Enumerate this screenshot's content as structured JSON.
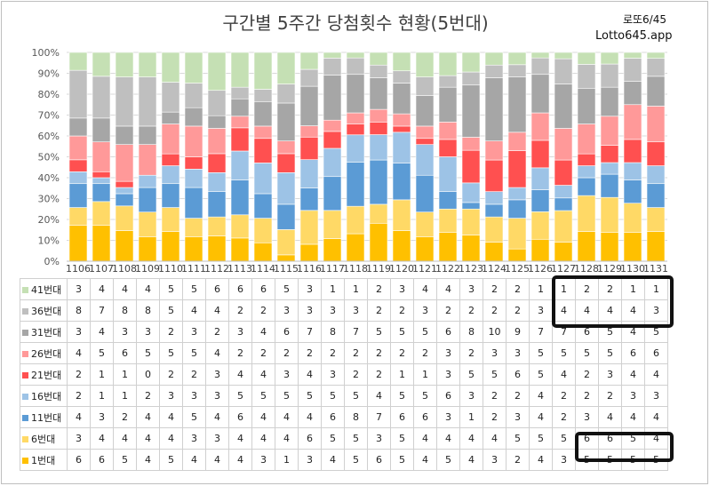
{
  "title": "구간별 5주간 당첨횟수 현황(5번대)",
  "brand": {
    "top": "로또6/45",
    "bottom": "Lotto645.app"
  },
  "chart_data": {
    "type": "bar",
    "stacked": "percent",
    "categories": [
      "1106",
      "1107",
      "1108",
      "1109",
      "1110",
      "1111",
      "1112",
      "1113",
      "1114",
      "1115",
      "1116",
      "1117",
      "1118",
      "1119",
      "1120",
      "1121",
      "1122",
      "1123",
      "1124",
      "1125",
      "1126",
      "1127",
      "1128",
      "1129",
      "1130",
      "1131"
    ],
    "y_ticks": [
      "0%",
      "10%",
      "20%",
      "30%",
      "40%",
      "50%",
      "60%",
      "70%",
      "80%",
      "90%",
      "100%"
    ],
    "ylim": [
      0,
      100
    ],
    "grid": true,
    "series": [
      {
        "name": "1번대",
        "color": "#ffc000",
        "values": [
          6,
          6,
          5,
          4,
          5,
          4,
          4,
          4,
          3,
          1,
          3,
          4,
          5,
          6,
          5,
          4,
          5,
          4,
          3,
          2,
          4,
          3,
          5,
          5,
          5,
          5
        ]
      },
      {
        "name": "6번대",
        "color": "#ffd966",
        "values": [
          3,
          4,
          4,
          4,
          4,
          3,
          3,
          4,
          4,
          4,
          6,
          5,
          5,
          3,
          5,
          4,
          4,
          4,
          4,
          5,
          5,
          5,
          6,
          6,
          5,
          4
        ]
      },
      {
        "name": "11번대",
        "color": "#5b9bd5",
        "values": [
          4,
          3,
          2,
          4,
          4,
          5,
          4,
          6,
          4,
          4,
          4,
          6,
          8,
          7,
          6,
          6,
          3,
          1,
          2,
          3,
          4,
          2,
          3,
          4,
          4,
          4
        ]
      },
      {
        "name": "16번대",
        "color": "#9dc3e6",
        "values": [
          2,
          1,
          1,
          2,
          3,
          3,
          3,
          5,
          5,
          5,
          5,
          5,
          5,
          4,
          5,
          5,
          6,
          3,
          2,
          2,
          4,
          2,
          2,
          2,
          3,
          3
        ]
      },
      {
        "name": "21번대",
        "color": "#ff5050",
        "values": [
          2,
          1,
          1,
          0,
          2,
          2,
          3,
          4,
          4,
          3,
          4,
          3,
          2,
          2,
          1,
          1,
          3,
          5,
          5,
          6,
          5,
          4,
          2,
          3,
          4,
          4
        ]
      },
      {
        "name": "26번대",
        "color": "#ff9999",
        "values": [
          4,
          5,
          6,
          5,
          5,
          5,
          4,
          2,
          2,
          2,
          2,
          2,
          2,
          2,
          2,
          2,
          3,
          2,
          3,
          3,
          5,
          5,
          5,
          5,
          6,
          6
        ]
      },
      {
        "name": "31번대",
        "color": "#a6a6a6",
        "values": [
          3,
          4,
          3,
          3,
          2,
          3,
          2,
          3,
          4,
          6,
          7,
          8,
          7,
          5,
          5,
          5,
          6,
          8,
          10,
          9,
          7,
          7,
          6,
          5,
          4,
          5
        ]
      },
      {
        "name": "36번대",
        "color": "#bfbfbf",
        "values": [
          8,
          7,
          8,
          8,
          5,
          4,
          4,
          2,
          2,
          3,
          3,
          3,
          3,
          2,
          2,
          3,
          2,
          2,
          2,
          2,
          3,
          4,
          4,
          4,
          4,
          3
        ]
      },
      {
        "name": "41번대",
        "color": "#c5e0b4",
        "values": [
          3,
          4,
          4,
          4,
          5,
          5,
          6,
          6,
          6,
          5,
          3,
          1,
          1,
          2,
          3,
          4,
          4,
          3,
          2,
          2,
          1,
          1,
          2,
          2,
          1,
          1
        ]
      }
    ],
    "legend": "table-below"
  }
}
